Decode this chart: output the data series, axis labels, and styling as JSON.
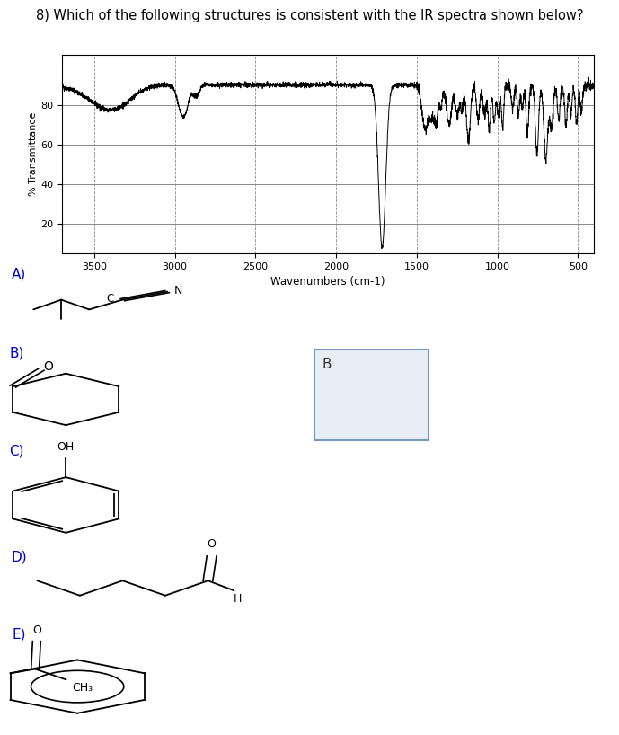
{
  "title": "8) Which of the following structures is consistent with the IR spectra shown below?",
  "title_color": "#000000",
  "title_fontsize": 10.5,
  "xlabel": "Wavenumbers (cm-1)",
  "ylabel": "% Transmittance",
  "yticks": [
    20,
    40,
    60,
    80
  ],
  "xticks": [
    3500,
    3000,
    2500,
    2000,
    1500,
    1000,
    500
  ],
  "xlim": [
    3700,
    400
  ],
  "ylim": [
    5,
    105
  ],
  "grid_color": "#888888",
  "spectrum_color": "#000000",
  "bg_color": "#ffffff",
  "answer_box_color": "#e8eef5",
  "answer_box_border": "#7799bb",
  "answer_letter": "B",
  "options": [
    "A)",
    "B)",
    "C)",
    "D)",
    "E)"
  ],
  "option_fontsize": 11,
  "label_color": "#0000cc"
}
